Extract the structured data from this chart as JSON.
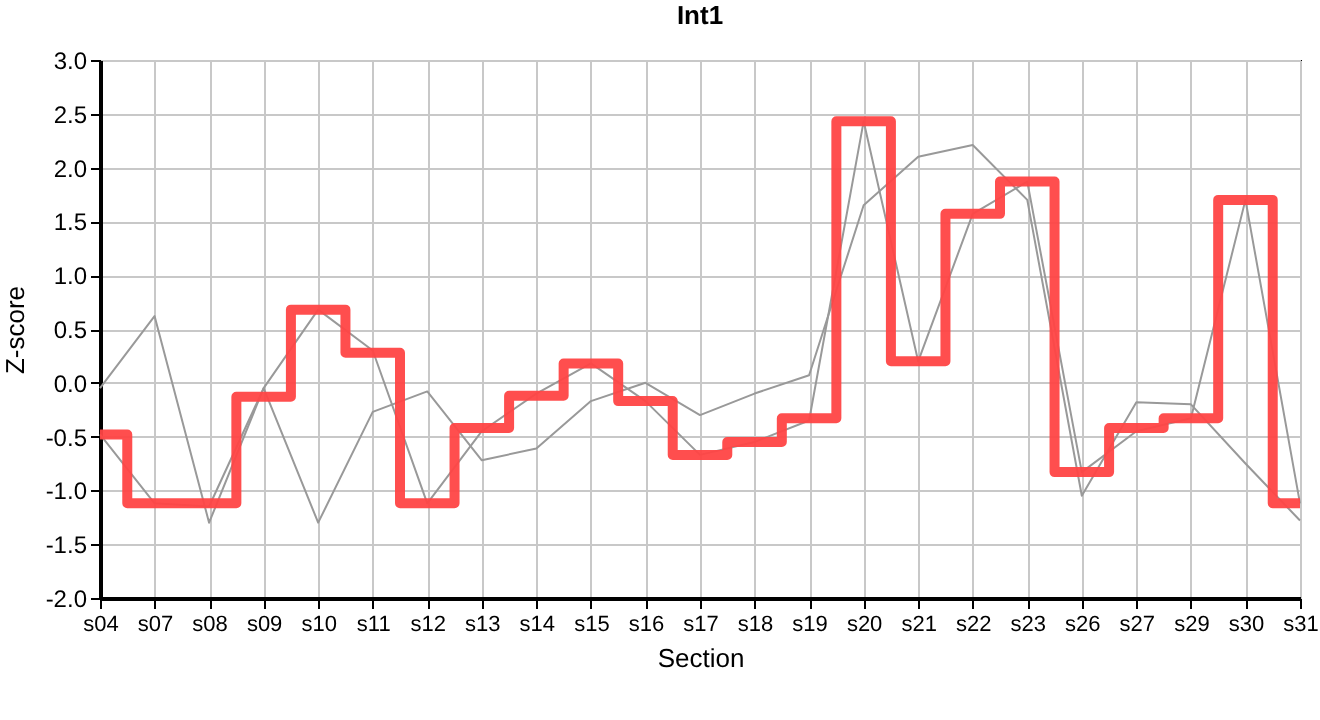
{
  "chart_data": {
    "type": "line",
    "title": "Int1",
    "xlabel": "Section",
    "ylabel": "Z-score",
    "categories": [
      "s04",
      "s07",
      "s08",
      "s09",
      "s10",
      "s11",
      "s12",
      "s13",
      "s14",
      "s15",
      "s16",
      "s17",
      "s18",
      "s19",
      "s20",
      "s21",
      "s22",
      "s23",
      "s26",
      "s27",
      "s29",
      "s30",
      "s31"
    ],
    "series": [
      {
        "color": "#999999",
        "values": [
          -0.05,
          0.62,
          -1.3,
          -0.05,
          -1.3,
          -0.27,
          -0.08,
          -0.72,
          -0.61,
          -0.17,
          0.0,
          -0.3,
          -0.1,
          0.07,
          1.65,
          2.1,
          2.21,
          1.7,
          -1.05,
          -0.18,
          -0.2,
          -0.75,
          -1.28
        ]
      },
      {
        "color": "#999999",
        "values": [
          -0.48,
          -1.12,
          -1.15,
          -0.05,
          0.68,
          0.3,
          -1.12,
          -0.45,
          -0.1,
          0.18,
          -0.17,
          -0.67,
          -0.55,
          -0.35,
          2.43,
          0.2,
          1.57,
          1.87,
          -0.83,
          -0.45,
          -0.33,
          1.7,
          -1.12
        ]
      },
      {
        "type": "step",
        "color": "#ff4444",
        "values": [
          -0.48,
          -1.12,
          -1.12,
          -0.13,
          0.68,
          0.28,
          -1.12,
          -0.42,
          -0.12,
          0.18,
          -0.17,
          -0.67,
          -0.55,
          -0.33,
          2.43,
          0.2,
          1.57,
          1.87,
          -0.83,
          -0.42,
          -0.33,
          1.7,
          -1.12
        ]
      }
    ],
    "ylim": [
      -2,
      3
    ],
    "yticks": [
      {
        "value": -2,
        "label": "-2.0"
      },
      {
        "value": -1.5,
        "label": "-1.5"
      },
      {
        "value": -1,
        "label": "-1.0"
      },
      {
        "value": -0.5,
        "label": "-0.5"
      },
      {
        "value": 0,
        "label": "0.0"
      },
      {
        "value": 0.5,
        "label": "0.5"
      },
      {
        "value": 1,
        "label": "1.0"
      },
      {
        "value": 1.5,
        "label": "1.5"
      },
      {
        "value": 2,
        "label": "2.0"
      },
      {
        "value": 2.5,
        "label": "2.5"
      },
      {
        "value": 3,
        "label": "3.0"
      }
    ],
    "grid": true
  }
}
